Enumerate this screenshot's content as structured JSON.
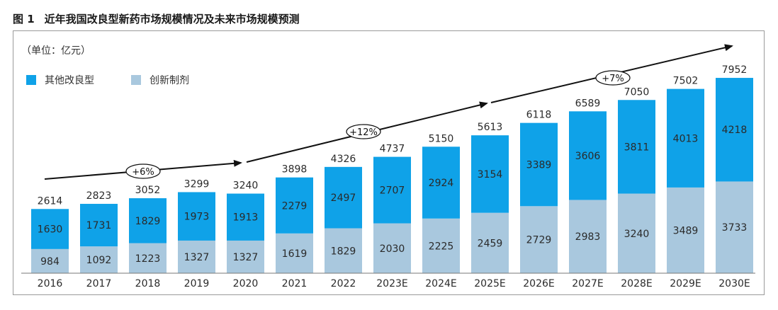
{
  "figure": {
    "number": "图 1",
    "title": "近年我国改良型新药市场规模情况及未来市场规模预测"
  },
  "chart_data": {
    "type": "bar",
    "stacked": true,
    "unit_label": "（单位：亿元）",
    "categories": [
      "2016",
      "2017",
      "2018",
      "2019",
      "2020",
      "2021",
      "2022",
      "2023E",
      "2024E",
      "2025E",
      "2026E",
      "2027E",
      "2028E",
      "2029E",
      "2030E"
    ],
    "series": [
      {
        "name": "创新制剂",
        "color": "#a9c8de",
        "values": [
          984,
          1092,
          1223,
          1327,
          1327,
          1619,
          1829,
          2030,
          2225,
          2459,
          2729,
          2983,
          3240,
          3489,
          3733
        ]
      },
      {
        "name": "其他改良型",
        "color": "#0fa2e8",
        "values": [
          1630,
          1731,
          1829,
          1973,
          1913,
          2279,
          2497,
          2707,
          2924,
          3154,
          3389,
          3606,
          3811,
          4013,
          4218
        ]
      }
    ],
    "totals": [
      2614,
      2823,
      3052,
      3299,
      3240,
      3898,
      4326,
      4737,
      5150,
      5613,
      6118,
      6589,
      7050,
      7502,
      7952
    ],
    "legend": [
      {
        "label": "其他改良型",
        "color": "#0fa2e8"
      },
      {
        "label": "创新制剂",
        "color": "#a9c8de"
      }
    ],
    "legend_position": "top-left",
    "growth_annotations": [
      "+6%",
      "+12%",
      "+7%"
    ],
    "grid": false,
    "ylim": [
      0,
      9000
    ]
  }
}
